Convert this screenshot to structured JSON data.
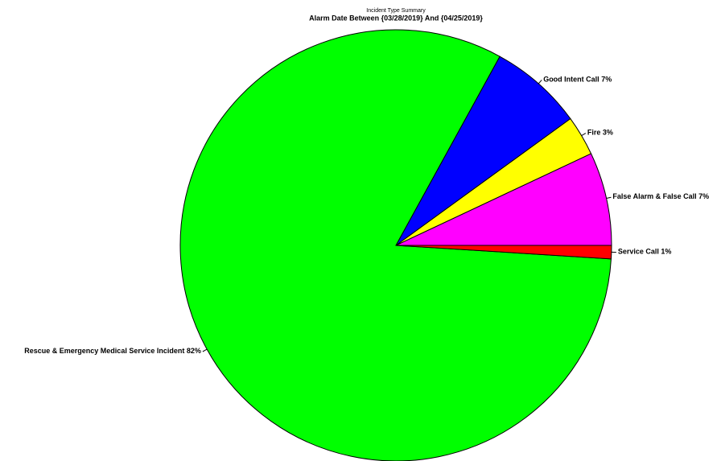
{
  "chart_data": {
    "type": "pie",
    "title": "Incident Type Summary",
    "subtitle": "Alarm Date Between {03/28/2019} And {04/25/2019}",
    "categories": [
      "False Alarm & False Call",
      "Fire",
      "Good Intent Call",
      "Rescue & Emergency Medical Service Incident",
      "Service Call"
    ],
    "values": [
      7,
      3,
      7,
      82,
      1
    ],
    "value_labels": [
      "7%",
      "3%",
      "7%",
      "82%",
      "1%"
    ],
    "colors": [
      "#ff00ff",
      "#ffff00",
      "#0000ff",
      "#00ff00",
      "#ff0000"
    ]
  }
}
